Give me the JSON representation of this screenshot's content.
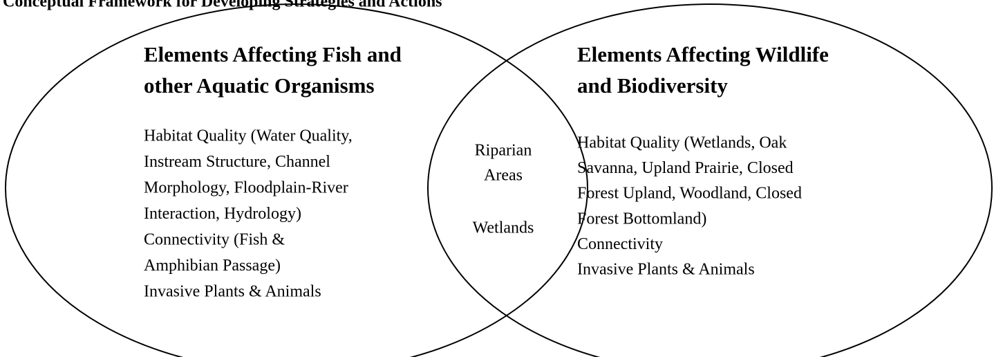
{
  "title": "Conceptual Framework for Developing Strategies and Actions",
  "left": {
    "heading": [
      "Elements Affecting Fish and",
      "other Aquatic Organisms"
    ],
    "body": [
      "Habitat Quality (Water Quality,",
      "Instream Structure, Channel",
      "Morphology, Floodplain-River",
      "Interaction, Hydrology)",
      "Connectivity (Fish &",
      "Amphibian Passage)",
      "Invasive Plants & Animals"
    ]
  },
  "right": {
    "heading": [
      "Elements Affecting Wildlife",
      "and Biodiversity"
    ],
    "body": [
      "Habitat Quality (Wetlands, Oak",
      "Savanna, Upland Prairie, Closed",
      "Forest Upland, Woodland, Closed",
      "Forest Bottomland)",
      "Connectivity",
      "Invasive Plants & Animals"
    ]
  },
  "center": {
    "items": [
      "Riparian",
      "Areas",
      "Wetlands"
    ]
  }
}
